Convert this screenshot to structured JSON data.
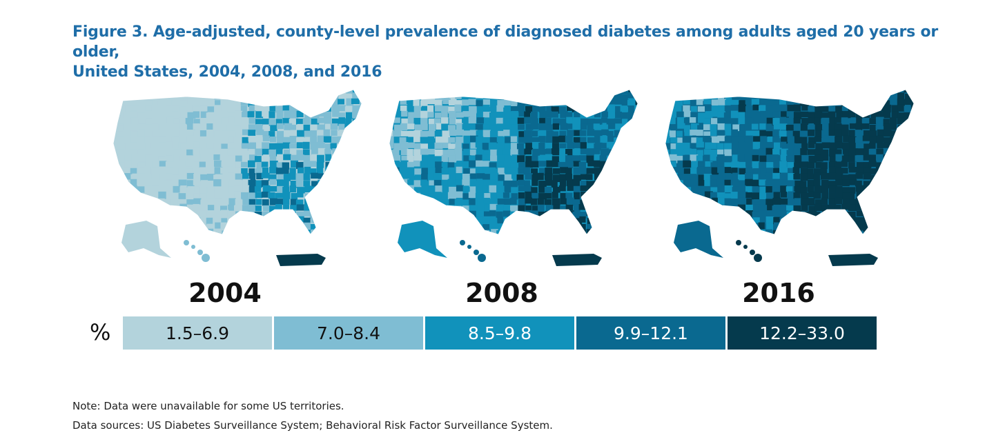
{
  "figure": {
    "title_line1": "Figure 3. Age-adjusted, county-level prevalence of diagnosed diabetes among adults aged 20 years or older,",
    "title_line2": "United States, 2004, 2008, and 2016"
  },
  "maps": [
    {
      "year": "2004",
      "dominant_class": 0
    },
    {
      "year": "2008",
      "dominant_class": 2
    },
    {
      "year": "2016",
      "dominant_class": 3
    }
  ],
  "legend": {
    "unit": "%",
    "classes": [
      {
        "label": "1.5–6.9",
        "color": "#b3d3dc",
        "text_color": "#111111"
      },
      {
        "label": "7.0–8.4",
        "color": "#7fbdd3",
        "text_color": "#111111"
      },
      {
        "label": "8.5–9.8",
        "color": "#1192bb",
        "text_color": "#ffffff"
      },
      {
        "label": "9.9–12.1",
        "color": "#0a6990",
        "text_color": "#ffffff"
      },
      {
        "label": "12.2–33.0",
        "color": "#053a4d",
        "text_color": "#ffffff"
      }
    ]
  },
  "notes": {
    "note": "Note: Data were unavailable for some US territories.",
    "sources": "Data sources: US Diabetes Surveillance System; Behavioral Risk Factor Surveillance System."
  }
}
